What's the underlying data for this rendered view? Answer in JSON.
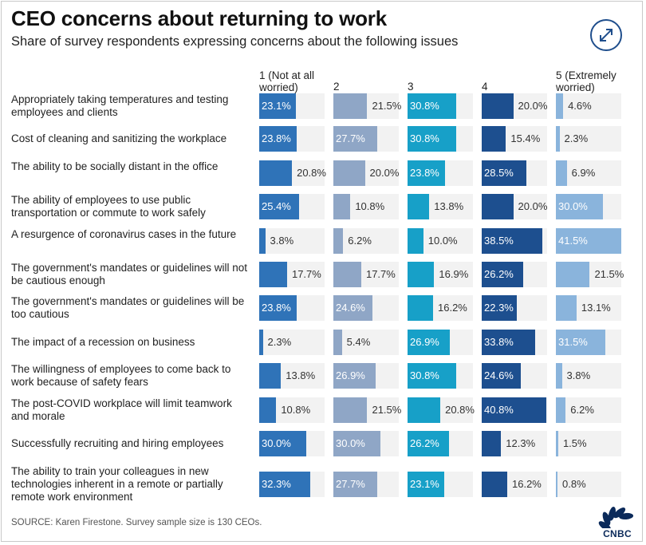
{
  "title": "CEO concerns about returning to work",
  "subtitle": "Share of survey respondents expressing concerns about the following issues",
  "source": "SOURCE: Karen Firestone. Survey sample size is 130 CEOs.",
  "logo_text": "CNBC",
  "icons": {
    "expand": "expand-arrows-icon",
    "logo": "peacock-icon"
  },
  "colors": {
    "col1": "#2f73b8",
    "col2": "#8fa6c6",
    "col3": "#17a0c8",
    "col4": "#1d4f8f",
    "col5": "#8ab4dc",
    "track": "#f2f2f2"
  },
  "chart_data": {
    "type": "bar",
    "title": "CEO concerns about returning to work",
    "subtitle": "Share of survey respondents expressing concerns about the following issues",
    "columns": [
      "1 (Not at all worried)",
      "2",
      "3",
      "4",
      "5 (Extremely worried)"
    ],
    "unit": "%",
    "categories": [
      "Appropriately taking temperatures and testing employees and clients",
      "Cost of cleaning and sanitizing the workplace",
      "The ability to be socially distant in the office",
      "The ability of employees to use public transportation or commute to work safely",
      "A resurgence of coronavirus cases in the future",
      "The government's mandates or guidelines will not be cautious enough",
      "The government's mandates or guidelines will be too cautious",
      "The impact of a recession on business",
      "The willingness of employees to come back to work because of safety fears",
      "The post-COVID workplace will limit teamwork and morale",
      "Successfully recruiting and hiring employees",
      "The ability to train your colleagues in new technologies inherent in a remote or partially remote work environment"
    ],
    "series": [
      {
        "name": "1 (Not at all worried)",
        "values": [
          23.1,
          23.8,
          20.8,
          25.4,
          3.8,
          17.7,
          23.8,
          2.3,
          13.8,
          10.8,
          30.0,
          32.3
        ]
      },
      {
        "name": "2",
        "values": [
          21.5,
          27.7,
          20.0,
          10.8,
          6.2,
          17.7,
          24.6,
          5.4,
          26.9,
          21.5,
          30.0,
          27.7
        ]
      },
      {
        "name": "3",
        "values": [
          30.8,
          30.8,
          23.8,
          13.8,
          10.0,
          16.9,
          16.2,
          26.9,
          30.8,
          20.8,
          26.2,
          23.1
        ]
      },
      {
        "name": "4",
        "values": [
          20.0,
          15.4,
          28.5,
          20.0,
          38.5,
          26.2,
          22.3,
          33.8,
          24.6,
          40.8,
          12.3,
          16.2
        ]
      },
      {
        "name": "5 (Extremely worried)",
        "values": [
          4.6,
          2.3,
          6.9,
          30.0,
          41.5,
          21.5,
          13.1,
          31.5,
          3.8,
          6.2,
          1.5,
          0.8
        ]
      }
    ],
    "value_format": "0.0%",
    "xlim": [
      0,
      41.5
    ]
  }
}
